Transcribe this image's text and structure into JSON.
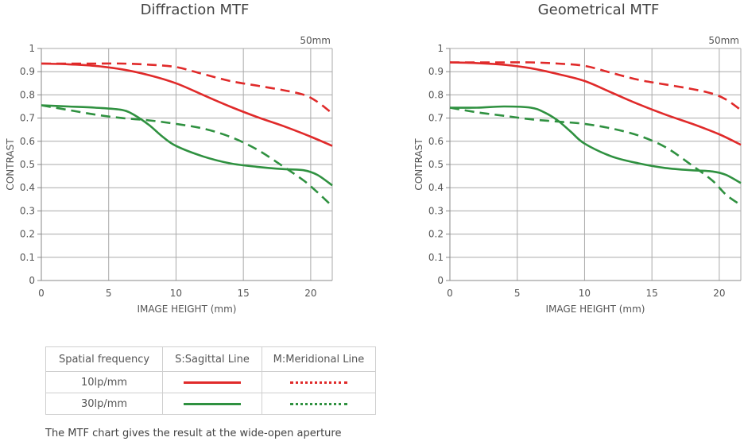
{
  "colors": {
    "sagittal_10": "#e02a2a",
    "meridional_10": "#e02a2a",
    "sagittal_30": "#2f9140",
    "meridional_30": "#2f9140",
    "grid": "#aaaaaa"
  },
  "chart_data": [
    {
      "type": "line",
      "title": "Diffraction MTF",
      "focal_label": "50mm",
      "xlabel": "IMAGE HEIGHT (mm)",
      "ylabel": "CONTRAST",
      "xlim": [
        0,
        21.6
      ],
      "ylim": [
        0,
        1
      ],
      "xticks": [
        0,
        5,
        10,
        15,
        20
      ],
      "yticks": [
        0,
        0.1,
        0.2,
        0.3,
        0.4,
        0.5,
        0.6,
        0.7,
        0.8,
        0.9,
        1
      ],
      "ytick_labels": [
        "0",
        "0.1",
        "0.2",
        "0.3",
        "0.4",
        "0.5",
        "0.6",
        "0.7",
        "0.8",
        "0.9",
        "1"
      ],
      "series": [
        {
          "name": "10lp/mm S:Sagittal",
          "style": "solid",
          "color": "#e02a2a",
          "x": [
            0,
            2,
            4,
            6,
            8,
            10,
            12,
            14,
            16,
            18,
            20,
            21.6
          ],
          "y": [
            0.935,
            0.932,
            0.925,
            0.91,
            0.885,
            0.85,
            0.8,
            0.75,
            0.705,
            0.665,
            0.62,
            0.58
          ]
        },
        {
          "name": "10lp/mm M:Meridional",
          "style": "dashed",
          "color": "#e02a2a",
          "x": [
            0,
            2,
            4,
            6,
            8,
            10,
            12,
            14,
            16,
            18,
            19.5,
            20.5,
            21.6
          ],
          "y": [
            0.935,
            0.935,
            0.935,
            0.935,
            0.93,
            0.92,
            0.89,
            0.86,
            0.84,
            0.82,
            0.8,
            0.77,
            0.72
          ]
        },
        {
          "name": "30lp/mm S:Sagittal",
          "style": "solid",
          "color": "#2f9140",
          "x": [
            0,
            2,
            4,
            6,
            7,
            8,
            9,
            10,
            12,
            14,
            16,
            18,
            19.5,
            20.5,
            21.6
          ],
          "y": [
            0.755,
            0.75,
            0.745,
            0.735,
            0.71,
            0.67,
            0.62,
            0.58,
            0.535,
            0.505,
            0.49,
            0.48,
            0.475,
            0.455,
            0.41
          ]
        },
        {
          "name": "30lp/mm M:Meridional",
          "style": "dashed",
          "color": "#2f9140",
          "x": [
            0,
            2,
            4,
            6,
            8,
            10,
            12,
            14,
            16,
            18,
            19.5,
            20.5,
            21.6
          ],
          "y": [
            0.755,
            0.735,
            0.715,
            0.7,
            0.69,
            0.675,
            0.655,
            0.62,
            0.565,
            0.49,
            0.43,
            0.38,
            0.32
          ]
        }
      ]
    },
    {
      "type": "line",
      "title": "Geometrical MTF",
      "focal_label": "50mm",
      "xlabel": "IMAGE HEIGHT (mm)",
      "ylabel": "CONTRAST",
      "xlim": [
        0,
        21.6
      ],
      "ylim": [
        0,
        1
      ],
      "xticks": [
        0,
        5,
        10,
        15,
        20
      ],
      "yticks": [
        0,
        0.1,
        0.2,
        0.3,
        0.4,
        0.5,
        0.6,
        0.7,
        0.8,
        0.9,
        1
      ],
      "ytick_labels": [
        "0",
        "0.1",
        "0.2",
        "0.3",
        "0.4",
        "0.5",
        "0.6",
        "0.7",
        "0.8",
        "0.9",
        "1"
      ],
      "series": [
        {
          "name": "10lp/mm S:Sagittal",
          "style": "solid",
          "color": "#e02a2a",
          "x": [
            0,
            2,
            4,
            6,
            8,
            10,
            12,
            14,
            16,
            18,
            20,
            21.6
          ],
          "y": [
            0.94,
            0.937,
            0.93,
            0.915,
            0.89,
            0.86,
            0.81,
            0.76,
            0.715,
            0.675,
            0.63,
            0.585
          ]
        },
        {
          "name": "10lp/mm M:Meridional",
          "style": "dashed",
          "color": "#e02a2a",
          "x": [
            0,
            2,
            4,
            6,
            8,
            10,
            12,
            14,
            16,
            18,
            19.5,
            20.5,
            21.6
          ],
          "y": [
            0.94,
            0.94,
            0.94,
            0.94,
            0.935,
            0.925,
            0.895,
            0.865,
            0.845,
            0.825,
            0.805,
            0.78,
            0.735
          ]
        },
        {
          "name": "30lp/mm S:Sagittal",
          "style": "solid",
          "color": "#2f9140",
          "x": [
            0,
            2,
            4,
            6,
            7,
            8,
            9,
            10,
            12,
            14,
            16,
            18,
            19.5,
            20.5,
            21.6
          ],
          "y": [
            0.745,
            0.745,
            0.75,
            0.745,
            0.725,
            0.69,
            0.64,
            0.59,
            0.535,
            0.505,
            0.485,
            0.475,
            0.47,
            0.455,
            0.42
          ]
        },
        {
          "name": "30lp/mm M:Meridional",
          "style": "dashed",
          "color": "#2f9140",
          "x": [
            0,
            2,
            4,
            6,
            8,
            10,
            12,
            14,
            16,
            18,
            19.5,
            20.5,
            21.6
          ],
          "y": [
            0.745,
            0.725,
            0.71,
            0.695,
            0.685,
            0.675,
            0.655,
            0.625,
            0.575,
            0.495,
            0.43,
            0.37,
            0.325
          ]
        }
      ]
    }
  ],
  "legend": {
    "header": [
      "Spatial frequency",
      "S:Sagittal Line",
      "M:Meridional Line"
    ],
    "rows": [
      {
        "label": "10lp/mm"
      },
      {
        "label": "30lp/mm"
      }
    ]
  },
  "footnote": "The MTF chart gives the result at the wide-open aperture"
}
